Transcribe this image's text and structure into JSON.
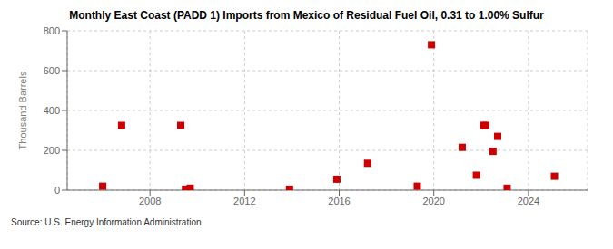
{
  "chart_data": {
    "type": "scatter",
    "title": "Monthly East Coast (PADD 1) Imports from Mexico of Residual Fuel Oil, 0.31 to 1.00% Sulfur",
    "ylabel": "Thousand Barrels",
    "source": "Source: U.S. Energy Information Administration",
    "x": [
      2006.0,
      2006.8,
      2009.3,
      2009.5,
      2009.7,
      2013.9,
      2015.9,
      2017.2,
      2019.3,
      2019.9,
      2021.2,
      2021.8,
      2022.1,
      2022.2,
      2022.5,
      2022.7,
      2023.1,
      2025.1
    ],
    "values": [
      20,
      325,
      325,
      5,
      10,
      5,
      55,
      135,
      20,
      730,
      215,
      75,
      325,
      325,
      195,
      270,
      10,
      70
    ],
    "color": "#cc0000",
    "marker": "square",
    "xlim": [
      2004.5,
      2026.5
    ],
    "ylim": [
      0,
      800
    ],
    "xticks": [
      2008,
      2012,
      2016,
      2020,
      2024
    ],
    "yticks": [
      0,
      200,
      400,
      600,
      800
    ],
    "grid": true
  }
}
